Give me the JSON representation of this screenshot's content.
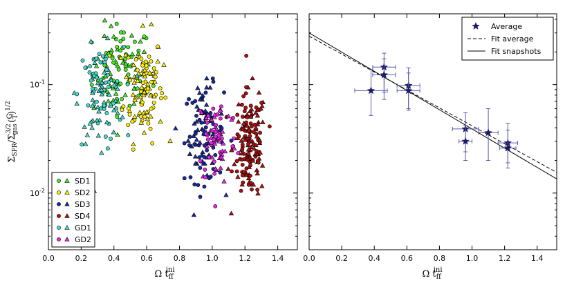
{
  "chart_data": [
    {
      "type": "scatter",
      "title": "",
      "xlabel": "Ω t_ff^ini",
      "ylabel": "Σ_SFR / Σ_gas^3/2 (G/T)^1/2",
      "x_ticks": [
        "0.0",
        "0.2",
        "0.4",
        "0.6",
        "0.8",
        "1.0",
        "1.2",
        "1.4"
      ],
      "y_ticks": [
        "10^-2",
        "10^-1"
      ],
      "xlim": [
        0.0,
        1.52
      ],
      "ylim": [
        0.003,
        0.45
      ],
      "y_scale": "log",
      "legend_position": "lower-left",
      "series": [
        {
          "name": "SD1",
          "color": "#44ee22",
          "x_center": 0.45,
          "x_spread": 0.09,
          "y_center": 0.13,
          "y_spread": 0.22,
          "count": 110
        },
        {
          "name": "SD2",
          "color": "#ffee00",
          "x_center": 0.58,
          "x_spread": 0.06,
          "y_center": 0.095,
          "y_spread": 0.25,
          "count": 110
        },
        {
          "name": "SD3",
          "color": "#1a2a9c",
          "x_center": 0.95,
          "x_spread": 0.06,
          "y_center": 0.035,
          "y_spread": 0.22,
          "count": 110
        },
        {
          "name": "SD4",
          "color": "#b01010",
          "x_center": 1.23,
          "x_spread": 0.05,
          "y_center": 0.028,
          "y_spread": 0.25,
          "count": 160
        },
        {
          "name": "GD1",
          "color": "#44ddcc",
          "x_center": 0.32,
          "x_spread": 0.07,
          "y_center": 0.08,
          "y_spread": 0.22,
          "count": 110
        },
        {
          "name": "GD2",
          "color": "#ee22ee",
          "x_center": 1.03,
          "x_spread": 0.06,
          "y_center": 0.032,
          "y_spread": 0.22,
          "count": 70
        }
      ]
    },
    {
      "type": "scatter",
      "title": "",
      "xlabel": "Ω t_ff^ini",
      "ylabel": "",
      "x_ticks": [
        "0.0",
        "0.2",
        "0.4",
        "0.6",
        "0.8",
        "1.0",
        "1.2",
        "1.4"
      ],
      "xlim": [
        0.0,
        1.52
      ],
      "ylim": [
        0.003,
        0.45
      ],
      "y_scale": "log",
      "legend_position": "top-right",
      "legend": [
        "Average",
        "Fit average",
        "Fit snapshots"
      ],
      "series": [
        {
          "name": "Average",
          "color": "#1a1a66",
          "points": [
            {
              "x": 0.38,
              "y": 0.088,
              "xerr": 0.1,
              "yerr_low": 0.036,
              "yerr_high": 0.05
            },
            {
              "x": 0.46,
              "y": 0.145,
              "xerr": 0.07,
              "yerr_low": 0.06,
              "yerr_high": 0.05
            },
            {
              "x": 0.46,
              "y": 0.123,
              "xerr": 0.07,
              "yerr_low": 0.05,
              "yerr_high": 0.05
            },
            {
              "x": 0.61,
              "y": 0.098,
              "xerr": 0.07,
              "yerr_low": 0.038,
              "yerr_high": 0.045
            },
            {
              "x": 0.61,
              "y": 0.088,
              "xerr": 0.07,
              "yerr_low": 0.03,
              "yerr_high": 0.04
            },
            {
              "x": 0.96,
              "y": 0.039,
              "xerr": 0.08,
              "yerr_low": 0.015,
              "yerr_high": 0.016
            },
            {
              "x": 0.96,
              "y": 0.03,
              "xerr": 0.04,
              "yerr_low": 0.01,
              "yerr_high": 0.012
            },
            {
              "x": 1.1,
              "y": 0.036,
              "xerr": 0.06,
              "yerr_low": 0.016,
              "yerr_high": 0.024
            },
            {
              "x": 1.22,
              "y": 0.029,
              "xerr": 0.06,
              "yerr_low": 0.01,
              "yerr_high": 0.015
            },
            {
              "x": 1.22,
              "y": 0.026,
              "xerr": 0.05,
              "yerr_low": 0.009,
              "yerr_high": 0.012
            }
          ]
        },
        {
          "name": "Fit average",
          "style": "dashed",
          "color": "#000000",
          "line": [
            {
              "x": 0.0,
              "y": 0.28
            },
            {
              "x": 1.52,
              "y": 0.0155
            }
          ]
        },
        {
          "name": "Fit snapshots",
          "style": "solid",
          "color": "#000000",
          "line": [
            {
              "x": 0.0,
              "y": 0.3
            },
            {
              "x": 1.52,
              "y": 0.0135
            }
          ]
        }
      ]
    }
  ]
}
